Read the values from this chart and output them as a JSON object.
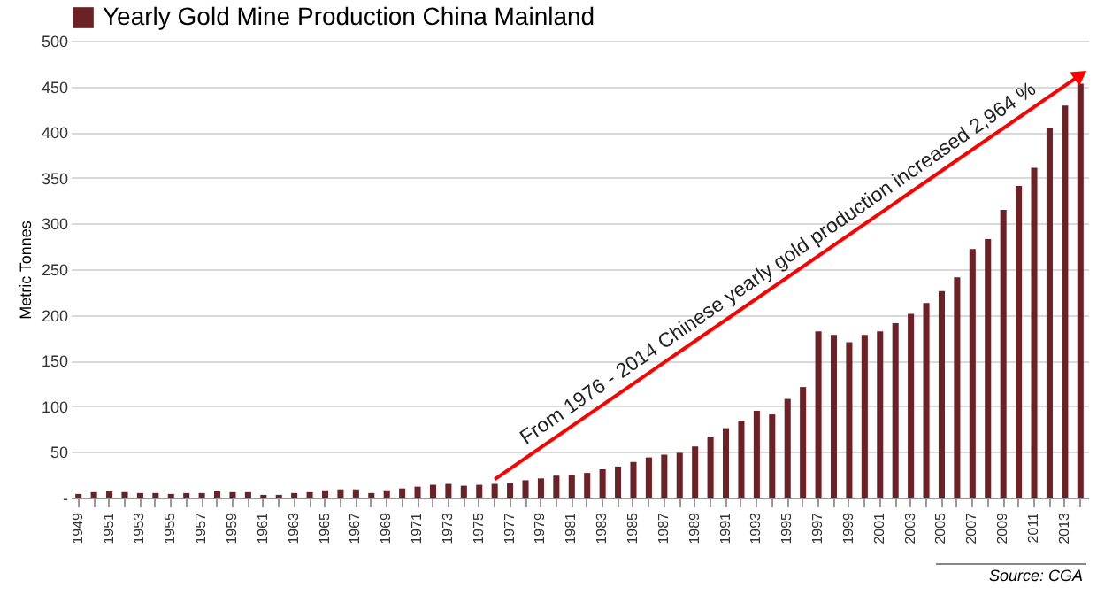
{
  "chart_data": {
    "type": "bar",
    "ylabel": "Metric Tonnes",
    "categories": [
      "1949",
      null,
      "1951",
      null,
      "1953",
      null,
      "1955",
      null,
      "1957",
      null,
      "1959",
      null,
      "1961",
      null,
      "1963",
      null,
      "1965",
      null,
      "1967",
      null,
      "1969",
      null,
      "1971",
      null,
      "1973",
      null,
      "1975",
      null,
      "1977",
      null,
      "1979",
      null,
      "1981",
      null,
      "1983",
      null,
      "1985",
      null,
      "1987",
      null,
      "1989",
      null,
      "1991",
      null,
      "1993",
      null,
      "1995",
      null,
      "1997",
      null,
      "1999",
      null,
      "2001",
      null,
      "2003",
      null,
      "2005",
      null,
      "2007",
      null,
      "2009",
      null,
      "2011",
      null,
      "2013",
      null
    ],
    "series": [
      {
        "name": "Yearly Gold Mine Production China Mainland",
        "color": "#6b2125",
        "values": [
          4,
          6,
          7,
          6,
          5,
          5,
          4,
          5,
          5,
          7,
          6,
          6,
          3,
          3,
          5,
          6,
          8,
          9,
          9,
          5,
          8,
          10,
          12,
          14,
          15,
          13,
          14,
          15,
          16,
          19,
          21,
          24,
          25,
          27,
          31,
          34,
          39,
          44,
          47,
          49,
          56,
          66,
          76,
          84,
          95,
          91,
          108,
          121,
          182,
          178,
          170,
          178,
          182,
          191,
          201,
          213,
          226,
          241,
          272,
          283,
          315,
          341,
          361,
          405,
          429,
          453
        ]
      }
    ],
    "ylim": [
      0,
      500
    ],
    "yticks": [
      {
        "value": 0,
        "label": "-"
      },
      50,
      100,
      150,
      200,
      250,
      300,
      350,
      400,
      450,
      500
    ],
    "grid": "y",
    "legend": "top",
    "annotations": [
      "From 1976 - 2014 Chinese yearly gold production increased 2,964 %",
      "Source: CGA"
    ]
  }
}
